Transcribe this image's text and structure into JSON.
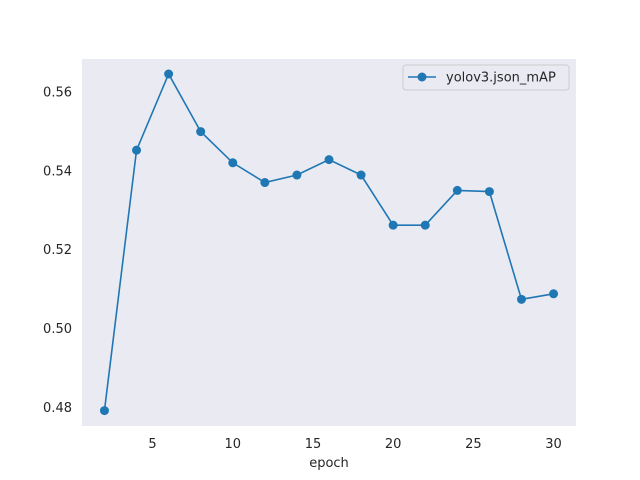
{
  "chart_data": {
    "type": "line",
    "title": "",
    "xlabel": "epoch",
    "ylabel": "",
    "xlim": [
      0.6,
      31.4
    ],
    "ylim": [
      0.4752,
      0.5682
    ],
    "xticks": [
      5,
      10,
      15,
      20,
      25,
      30
    ],
    "yticks": [
      0.48,
      0.5,
      0.52,
      0.54,
      0.56
    ],
    "xtick_labels": [
      "5",
      "10",
      "15",
      "20",
      "25",
      "30"
    ],
    "ytick_labels": [
      "0.48",
      "0.50",
      "0.52",
      "0.54",
      "0.56"
    ],
    "grid": false,
    "legend_position": "top-right",
    "x": [
      2,
      4,
      6,
      8,
      10,
      12,
      14,
      16,
      18,
      20,
      22,
      24,
      26,
      28,
      30
    ],
    "series": [
      {
        "name": "yolov3.json_mAP",
        "color": "#1f77b4",
        "marker": "circle",
        "values": [
          0.4791,
          0.5451,
          0.5644,
          0.5498,
          0.5419,
          0.5369,
          0.5388,
          0.5427,
          0.5388,
          0.5261,
          0.5261,
          0.5349,
          0.5346,
          0.5073,
          0.5087
        ]
      }
    ],
    "colors": {
      "plot_background": "#eaeaf2",
      "page_background": "#ffffff",
      "text": "#262626"
    }
  }
}
